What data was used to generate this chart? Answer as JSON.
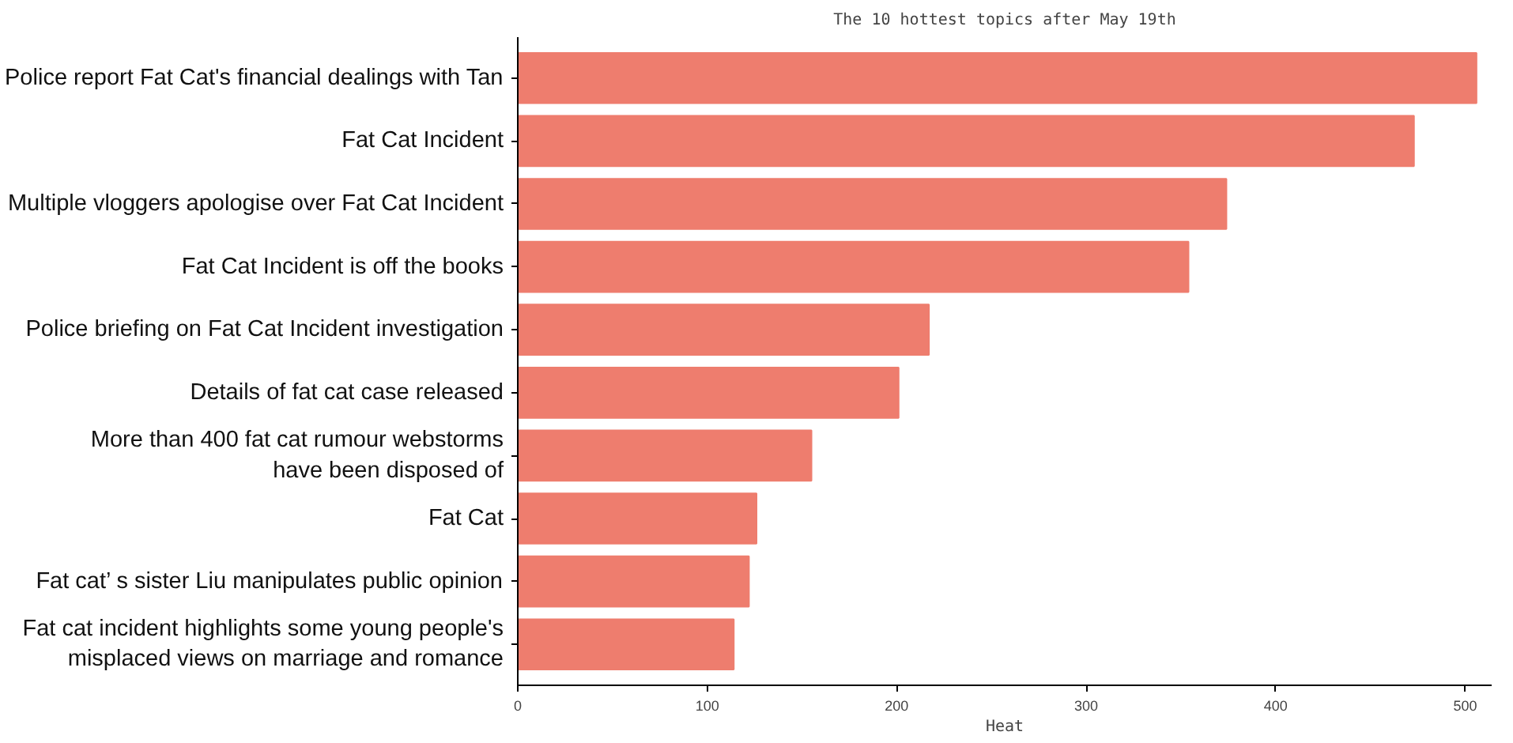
{
  "chart_data": {
    "type": "bar",
    "orientation": "horizontal",
    "title": "The 10 hottest topics after May 19th",
    "xlabel": "Heat",
    "categories": [
      "Police report Fat Cat's financial dealings with Tan",
      "Fat Cat Incident",
      "Multiple vloggers apologise over Fat Cat Incident",
      "Fat Cat Incident is off the books",
      "Police briefing on Fat Cat Incident investigation",
      "Details of fat cat case released",
      "More than 400 fat cat rumour webstorms\nhave been disposed of",
      "Fat Cat",
      "Fat cat’ s sister Liu manipulates public opinion",
      "Fat cat incident highlights some young people's\nmisplaced views on marriage and romance"
    ],
    "values": [
      506,
      473,
      374,
      354,
      217,
      201,
      155,
      126,
      122,
      114
    ],
    "color": "#ee7d6e",
    "xlim": [
      0,
      514
    ],
    "xticks": [
      0,
      100,
      200,
      300,
      400,
      500
    ],
    "grid": false
  }
}
